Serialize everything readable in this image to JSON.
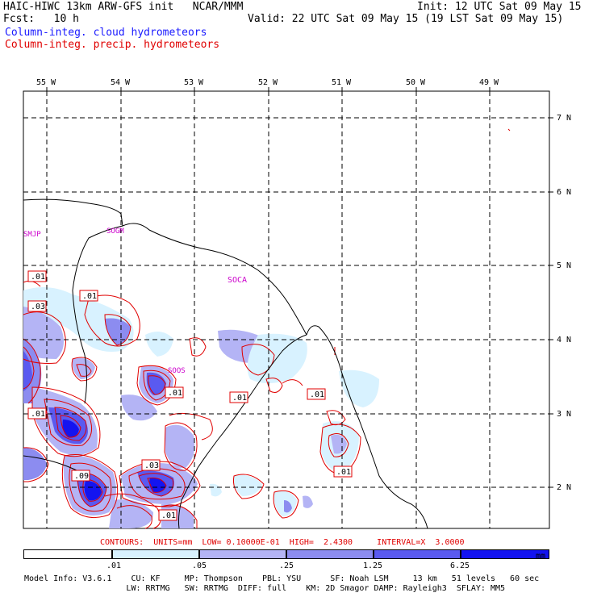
{
  "header": {
    "left_line1": "HAIC-HIWC 13km ARW-GFS init   NCAR/MMM",
    "right_line1": "Init: 12 UTC Sat 09 May 15",
    "left_line2": "Fcst:   10 h",
    "right_line2": "Valid: 22 UTC Sat 09 May 15 (19 LST Sat 09 May 15)",
    "legend_cloud": "Column-integ. cloud hydrometeors",
    "legend_precip": "Column-integ. precip. hydrometeors"
  },
  "map": {
    "lon_labels": [
      "55 W",
      "54 W",
      "53 W",
      "52 W",
      "51 W",
      "50 W",
      "49 W"
    ],
    "lat_labels": [
      "7 N",
      "6 N",
      "5 N",
      "4 N",
      "3 N",
      "2 N"
    ],
    "stations": [
      "SMJP",
      "SOGM",
      "SOCA",
      "SOOS"
    ],
    "contour_labels": [
      ".01",
      ".03",
      ".01",
      ".01",
      ".01",
      ".01",
      ".03",
      ".09",
      ".01",
      ".01"
    ],
    "colors": {
      "cloud": "#1a1aff",
      "precip": "#e00000",
      "station": "#cc00cc"
    }
  },
  "contour_info": {
    "text": "CONTOURS:  UNITS=mm  LOW= 0.10000E-01  HIGH=  2.4300     INTERVAL=X  3.0000"
  },
  "colorbar": {
    "ticks": [
      ".01",
      ".05",
      ".25",
      "1.25",
      "6.25"
    ],
    "unit": "mm",
    "fill_colors": [
      "#ffffff",
      "#d8f2ff",
      "#b4b4f5",
      "#8c8cf0",
      "#5a5af0",
      "#1414f0"
    ]
  },
  "footer": {
    "line1": "Model Info: V3.6.1    CU: KF     MP: Thompson    PBL: YSU      SF: Noah LSM     13 km   51 levels   60 sec",
    "line2": "                     LW: RRTMG   SW: RRTMG  DIFF: full    KM: 2D Smagor DAMP: Rayleigh3  SFLAY: MM5"
  }
}
